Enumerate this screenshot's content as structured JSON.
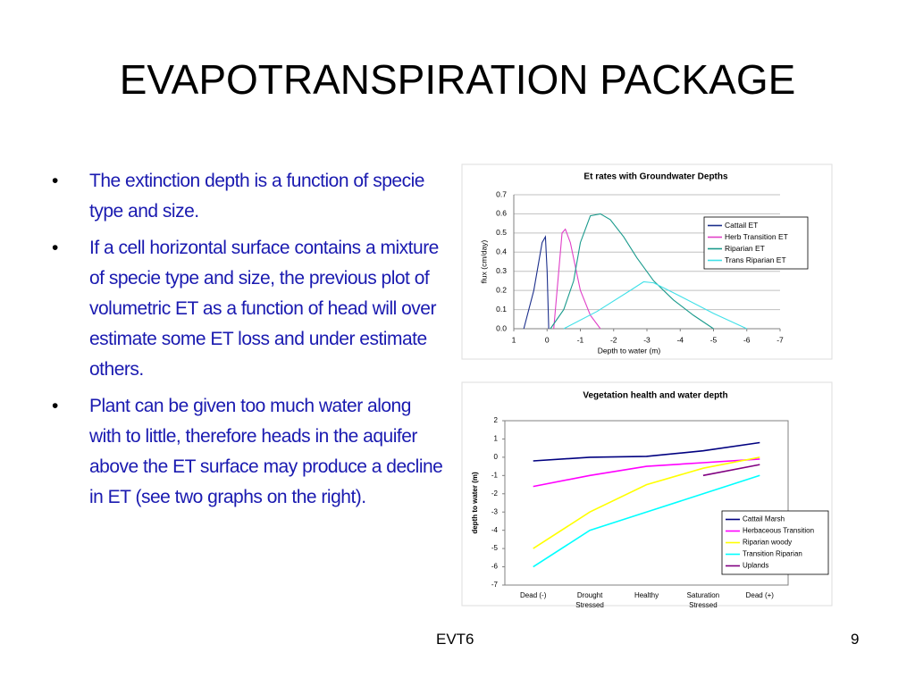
{
  "title": "EVAPOTRANSPIRATION PACKAGE",
  "bullets": [
    "The extinction depth is a function of specie type and size.",
    "If a cell horizontal surface contains a mixture of specie type and size, the previous plot of volumetric ET as a function of head will over estimate some ET loss and under estimate others.",
    "Plant can be given too much water along with to little, therefore heads in the aquifer above the ET surface may produce a decline in ET (see two graphs on the right)."
  ],
  "footer": "EVT6",
  "page_number": "9",
  "chart_data": [
    {
      "type": "line",
      "title": "Et rates with Groundwater Depths",
      "xlabel": "Depth to water (m)",
      "ylabel": "flux (cm/day)",
      "xlim": [
        1,
        -7
      ],
      "xticks": [
        1,
        0,
        -1,
        -2,
        -3,
        -4,
        -5,
        -6,
        -7
      ],
      "ylim": [
        0,
        0.7
      ],
      "yticks": [
        {
          "value": 0,
          "label": "0.0"
        },
        0.1,
        0.2,
        0.3,
        0.4,
        0.5,
        0.6,
        0.7
      ],
      "grid": true,
      "legend": "upper right",
      "series": [
        {
          "name": "Cattail ET",
          "color": "#1c2f8c",
          "x": [
            0.7,
            0.4,
            0.15,
            0.05,
            0.0,
            -0.05
          ],
          "values": [
            0,
            0.2,
            0.45,
            0.48,
            0.3,
            0
          ]
        },
        {
          "name": "Herb Transition ET",
          "color": "#e040c8",
          "x": [
            -0.2,
            -0.35,
            -0.45,
            -0.55,
            -0.7,
            -1.0,
            -1.3,
            -1.6
          ],
          "values": [
            0,
            0.3,
            0.5,
            0.52,
            0.45,
            0.2,
            0.07,
            0
          ]
        },
        {
          "name": "Riparian ET",
          "color": "#1a9a8c",
          "x": [
            -0.1,
            -0.5,
            -0.8,
            -1.0,
            -1.3,
            -1.6,
            -1.9,
            -2.3,
            -2.7,
            -3.2,
            -3.8,
            -4.4,
            -5.0
          ],
          "values": [
            0,
            0.1,
            0.25,
            0.45,
            0.59,
            0.6,
            0.57,
            0.48,
            0.37,
            0.25,
            0.15,
            0.07,
            0
          ]
        },
        {
          "name": "Trans Riparian ET",
          "color": "#40e0e8",
          "x": [
            -0.5,
            -1.5,
            -2.5,
            -2.9,
            -3.2,
            -4,
            -5,
            -6
          ],
          "values": [
            0,
            0.09,
            0.2,
            0.245,
            0.24,
            0.17,
            0.08,
            0
          ]
        }
      ]
    },
    {
      "type": "line",
      "title": "Vegetation health and water depth",
      "ylabel": "depth to water (m)",
      "categories": [
        "Dead (-)",
        "Drought\nStressed",
        "Healthy",
        "Saturation\nStressed",
        "Dead (+)"
      ],
      "ylim": [
        -7,
        2
      ],
      "yticks": [
        -7,
        -6,
        -5,
        -4,
        -3,
        -2,
        -1,
        0,
        1,
        2
      ],
      "grid": false,
      "legend": "lower right",
      "series": [
        {
          "name": "Cattail Marsh",
          "color": "#000080",
          "values": [
            -0.2,
            0,
            0.05,
            0.35,
            0.8
          ]
        },
        {
          "name": "Herbaceous Transition",
          "color": "#ff00ff",
          "values": [
            -1.6,
            -1,
            -0.5,
            -0.3,
            -0.1
          ]
        },
        {
          "name": "Riparian woody",
          "color": "#ffff00",
          "values": [
            -5,
            -3,
            -1.5,
            -0.6,
            0
          ]
        },
        {
          "name": "Transition Riparian",
          "color": "#00ffff",
          "values": [
            -6,
            -4,
            -3,
            -2,
            -1
          ]
        },
        {
          "name": "Uplands",
          "color": "#800080",
          "values": [
            null,
            null,
            null,
            -1,
            -0.4
          ]
        }
      ]
    }
  ]
}
